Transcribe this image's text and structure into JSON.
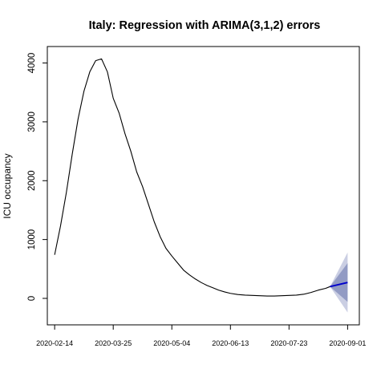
{
  "chart_data": {
    "type": "line",
    "title": "Italy: Regression with ARIMA(3,1,2) errors",
    "xlabel": "",
    "ylabel": "ICU occupancy",
    "x_ticks": [
      "2020-02-14",
      "2020-03-25",
      "2020-05-04",
      "2020-06-13",
      "2020-07-23",
      "2020-09-01"
    ],
    "y_ticks": [
      0,
      1000,
      2000,
      3000,
      4000
    ],
    "xlim": [
      "2020-02-09",
      "2020-09-09"
    ],
    "ylim": [
      -450,
      4280
    ],
    "grid": false,
    "colors": {
      "observed": "#000000",
      "forecast": "#0000cc",
      "band_80": "#8c96c0",
      "band_95": "#c4c9e0"
    },
    "series": [
      {
        "role": "observed",
        "x": [
          "2020-02-14",
          "2020-02-18",
          "2020-02-22",
          "2020-02-26",
          "2020-03-01",
          "2020-03-05",
          "2020-03-09",
          "2020-03-13",
          "2020-03-17",
          "2020-03-21",
          "2020-03-25",
          "2020-03-29",
          "2020-04-02",
          "2020-04-06",
          "2020-04-10",
          "2020-04-14",
          "2020-04-18",
          "2020-04-22",
          "2020-04-26",
          "2020-04-30",
          "2020-05-04",
          "2020-05-08",
          "2020-05-12",
          "2020-05-16",
          "2020-05-20",
          "2020-05-24",
          "2020-05-28",
          "2020-06-01",
          "2020-06-05",
          "2020-06-09",
          "2020-06-13",
          "2020-06-18",
          "2020-06-23",
          "2020-06-28",
          "2020-07-03",
          "2020-07-08",
          "2020-07-13",
          "2020-07-18",
          "2020-07-23",
          "2020-07-28",
          "2020-08-02",
          "2020-08-07",
          "2020-08-12",
          "2020-08-17",
          "2020-08-20"
        ],
        "values": [
          740,
          1230,
          1800,
          2450,
          3050,
          3520,
          3850,
          4040,
          4070,
          3850,
          3400,
          3150,
          2800,
          2500,
          2150,
          1900,
          1600,
          1300,
          1050,
          850,
          720,
          600,
          480,
          400,
          330,
          270,
          220,
          180,
          140,
          110,
          85,
          65,
          55,
          50,
          45,
          40,
          40,
          45,
          50,
          55,
          70,
          100,
          140,
          170,
          200
        ]
      },
      {
        "role": "forecast",
        "x": [
          "2020-08-20",
          "2020-09-01"
        ],
        "values": [
          200,
          270
        ]
      }
    ],
    "intervals": [
      {
        "level": 80,
        "x": [
          "2020-08-20",
          "2020-09-01"
        ],
        "lower": [
          200,
          -60
        ],
        "upper": [
          200,
          600
        ]
      },
      {
        "level": 95,
        "x": [
          "2020-08-20",
          "2020-09-01"
        ],
        "lower": [
          200,
          -240
        ],
        "upper": [
          200,
          780
        ]
      }
    ]
  }
}
